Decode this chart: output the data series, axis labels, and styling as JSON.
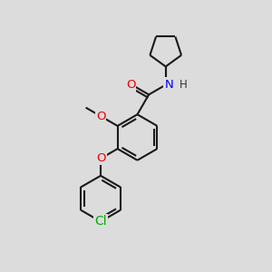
{
  "background_color": "#dcdcdc",
  "bond_color": "#1a1a1a",
  "bond_width": 1.5,
  "atom_colors": {
    "Cl": "#00aa00",
    "N": "#0000ee",
    "O": "#ee0000",
    "H": "#333333",
    "C": "#1a1a1a"
  },
  "font_size": 8.5,
  "scale": 1.0
}
